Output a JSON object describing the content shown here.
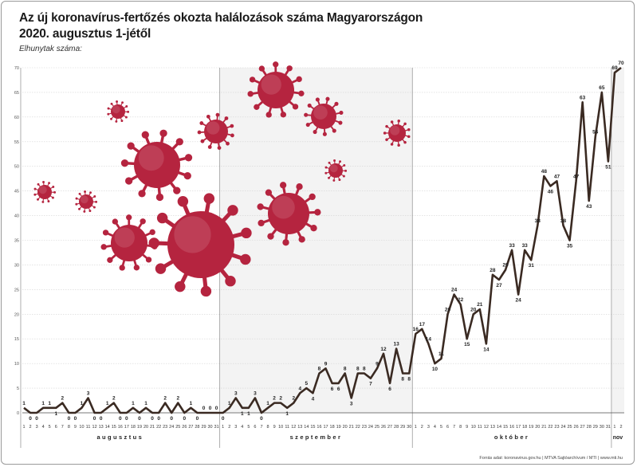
{
  "title_line1": "Az új koronavírus-fertőzés okozta halálozások száma Magyarországon",
  "title_line2": "2020. augusztus 1-jétől",
  "y_axis_label": "Elhunytak száma:",
  "footer": "Forrás adat: koronavirus.gov.hu  |  MTVA Sajtóarchívum / MTI  |  www.mti.hu",
  "colors": {
    "line": "#3a2a22",
    "virus": "#b5243f",
    "grid": "#d4d4d4",
    "band": "#f3f3f3"
  },
  "chart_data": {
    "type": "line",
    "title": "Az új koronavírus-fertőzés okozta halálozások száma Magyarországon 2020. augusztus 1-jétől",
    "ylabel": "Elhunytak száma:",
    "ylim": [
      0,
      70
    ],
    "yticks": [
      0,
      5,
      10,
      15,
      20,
      25,
      30,
      35,
      40,
      45,
      50,
      55,
      60,
      65,
      70
    ],
    "grid": true,
    "months": [
      {
        "name": "augusztus",
        "days": 31
      },
      {
        "name": "szeptember",
        "days": 30
      },
      {
        "name": "október",
        "days": 31
      },
      {
        "name": "nov",
        "days": 2
      }
    ],
    "series": [
      {
        "values": [
          1,
          0,
          0,
          1,
          1,
          1,
          2,
          0,
          0,
          1,
          3,
          0,
          0,
          1,
          2,
          0,
          0,
          1,
          0,
          1,
          0,
          0,
          2,
          0,
          2,
          0,
          1,
          0,
          0,
          0,
          0,
          0,
          1,
          3,
          1,
          1,
          3,
          0,
          1,
          2,
          2,
          1,
          2,
          4,
          5,
          4,
          8,
          9,
          6,
          6,
          8,
          3,
          8,
          8,
          7,
          9,
          12,
          6,
          13,
          8,
          8,
          16,
          17,
          14,
          10,
          11,
          20,
          24,
          22,
          15,
          20,
          21,
          14,
          28,
          27,
          29,
          33,
          24,
          33,
          31,
          38,
          48,
          46,
          47,
          38,
          35,
          47,
          63,
          43,
          56,
          65,
          51,
          69,
          70
        ]
      }
    ]
  }
}
